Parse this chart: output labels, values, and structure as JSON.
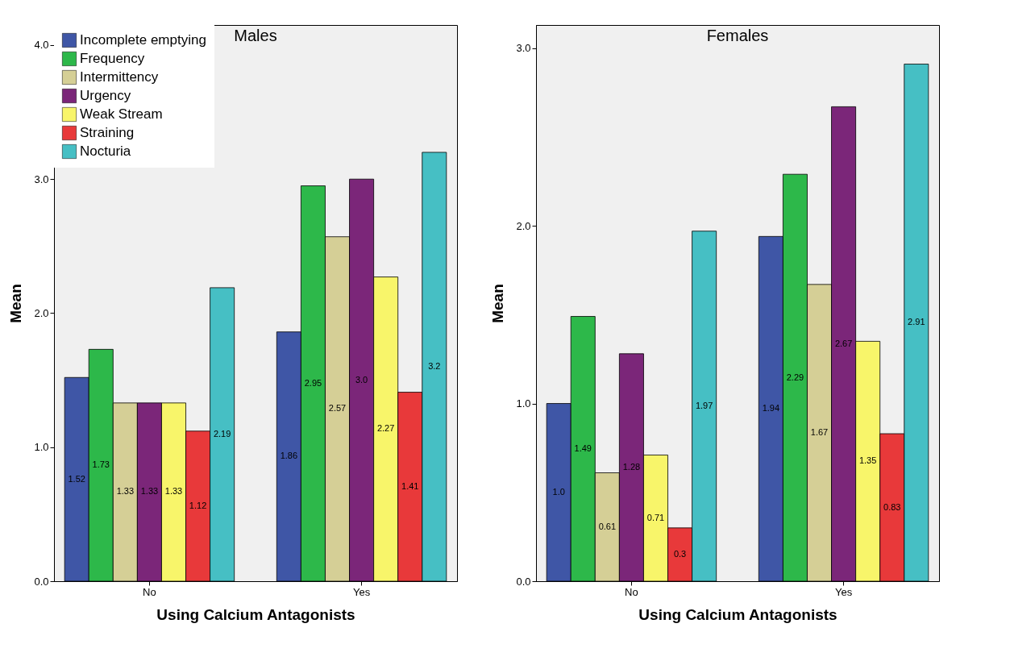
{
  "chart_data": [
    {
      "type": "bar",
      "title": "Males",
      "xlabel": "Using Calcium Antagonists",
      "ylabel": "Mean",
      "categories": [
        "No",
        "Yes"
      ],
      "ylim": [
        0,
        4.15
      ],
      "yticks": [
        {
          "value": 0,
          "label": "0.0"
        },
        {
          "value": 1,
          "label": "1.0"
        },
        {
          "value": 2,
          "label": "2.0"
        },
        {
          "value": 3,
          "label": "3.0"
        },
        {
          "value": 4,
          "label": "4.0"
        }
      ],
      "grid": false,
      "legend": "top left",
      "series": [
        {
          "name": "Incomplete emptying",
          "color": "#3f56a6",
          "values": [
            1.52,
            1.86
          ],
          "value_labels": [
            "1.52",
            "1.86"
          ]
        },
        {
          "name": "Frequency",
          "color": "#2db84a",
          "values": [
            1.73,
            2.95
          ],
          "value_labels": [
            "1.73",
            "2.95"
          ]
        },
        {
          "name": "Intermittency",
          "color": "#d5cf96",
          "values": [
            1.33,
            2.57
          ],
          "value_labels": [
            "1.33",
            "2.57"
          ]
        },
        {
          "name": "Urgency",
          "color": "#7b2679",
          "values": [
            1.33,
            3.0
          ],
          "value_labels": [
            "1.33",
            "3.0"
          ]
        },
        {
          "name": "Weak Stream",
          "color": "#f8f56a",
          "values": [
            1.33,
            2.27
          ],
          "value_labels": [
            "1.33",
            "2.27"
          ]
        },
        {
          "name": "Straining",
          "color": "#e8393a",
          "values": [
            1.12,
            1.41
          ],
          "value_labels": [
            "1.12",
            "1.41"
          ]
        },
        {
          "name": "Nocturia",
          "color": "#46bfc4",
          "values": [
            2.19,
            3.2
          ],
          "value_labels": [
            "2.19",
            "3.2"
          ]
        }
      ]
    },
    {
      "type": "bar",
      "title": "Females",
      "xlabel": "Using Calcium Antagonists",
      "ylabel": "Mean",
      "categories": [
        "No",
        "Yes"
      ],
      "ylim": [
        0,
        3.13
      ],
      "yticks": [
        {
          "value": 0,
          "label": "0.0"
        },
        {
          "value": 1,
          "label": "1.0"
        },
        {
          "value": 2,
          "label": "2.0"
        },
        {
          "value": 3,
          "label": "3.0"
        }
      ],
      "grid": false,
      "legend": false,
      "series": [
        {
          "color": "#3f56a6",
          "values": [
            1.0,
            1.94
          ],
          "value_labels": [
            "1.0",
            "1.94"
          ]
        },
        {
          "color": "#2db84a",
          "values": [
            1.49,
            2.29
          ],
          "value_labels": [
            "1.49",
            "2.29"
          ]
        },
        {
          "color": "#d5cf96",
          "values": [
            0.61,
            1.67
          ],
          "value_labels": [
            "0.61",
            "1.67"
          ]
        },
        {
          "color": "#7b2679",
          "values": [
            1.28,
            2.67
          ],
          "value_labels": [
            "1.28",
            "2.67"
          ]
        },
        {
          "color": "#f8f56a",
          "values": [
            0.71,
            1.35
          ],
          "value_labels": [
            "0.71",
            "1.35"
          ]
        },
        {
          "color": "#e8393a",
          "values": [
            0.3,
            0.83
          ],
          "value_labels": [
            "0.3",
            "0.83"
          ]
        },
        {
          "color": "#46bfc4",
          "values": [
            1.97,
            2.91
          ],
          "value_labels": [
            "1.97",
            "2.91"
          ]
        }
      ]
    }
  ]
}
